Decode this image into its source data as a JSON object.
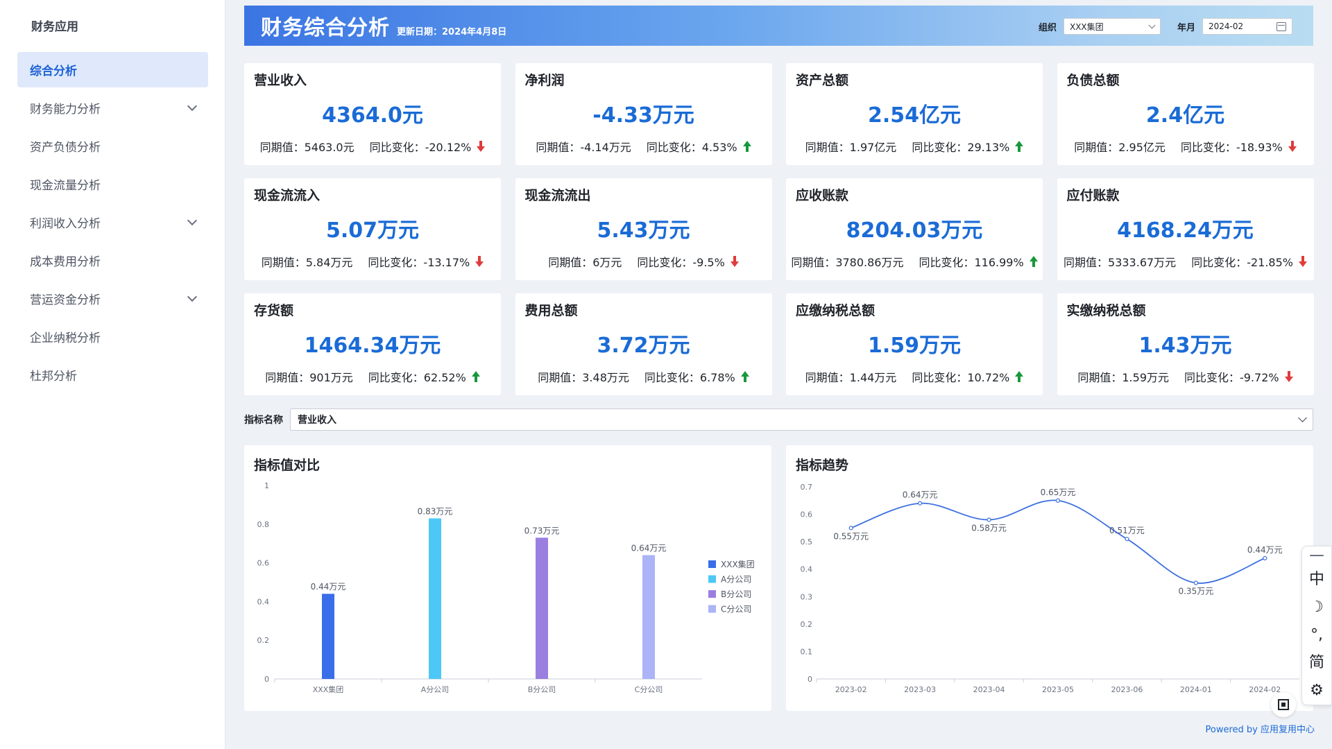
{
  "sidebar": {
    "app_title": "财务应用",
    "items": [
      {
        "label": "综合分析",
        "active": true,
        "has_children": false
      },
      {
        "label": "财务能力分析",
        "active": false,
        "has_children": true
      },
      {
        "label": "资产负债分析",
        "active": false,
        "has_children": false
      },
      {
        "label": "现金流量分析",
        "active": false,
        "has_children": false
      },
      {
        "label": "利润收入分析",
        "active": false,
        "has_children": true
      },
      {
        "label": "成本费用分析",
        "active": false,
        "has_children": false
      },
      {
        "label": "营运资金分析",
        "active": false,
        "has_children": true
      },
      {
        "label": "企业纳税分析",
        "active": false,
        "has_children": false
      },
      {
        "label": "杜邦分析",
        "active": false,
        "has_children": false
      }
    ]
  },
  "header": {
    "title": "财务综合分析",
    "update_date": "更新日期：2024年4月8日",
    "org_label": "组织",
    "org_value": "XXX集团",
    "month_label": "年月",
    "month_value": "2024-02"
  },
  "kpis": [
    {
      "name": "营业收入",
      "value": "4364.0元",
      "prev": "同期值：5463.0元",
      "change": "同比变化：-20.12%",
      "trend": "down"
    },
    {
      "name": "净利润",
      "value": "-4.33万元",
      "prev": "同期值：-4.14万元",
      "change": "同比变化：4.53%",
      "trend": "up"
    },
    {
      "name": "资产总额",
      "value": "2.54亿元",
      "prev": "同期值：1.97亿元",
      "change": "同比变化：29.13%",
      "trend": "up"
    },
    {
      "name": "负债总额",
      "value": "2.4亿元",
      "prev": "同期值：2.95亿元",
      "change": "同比变化：-18.93%",
      "trend": "down"
    },
    {
      "name": "现金流流入",
      "value": "5.07万元",
      "prev": "同期值：5.84万元",
      "change": "同比变化：-13.17%",
      "trend": "down"
    },
    {
      "name": "现金流流出",
      "value": "5.43万元",
      "prev": "同期值：6万元",
      "change": "同比变化：-9.5%",
      "trend": "down"
    },
    {
      "name": "应收账款",
      "value": "8204.03万元",
      "prev": "同期值：3780.86万元",
      "change": "同比变化：116.99%",
      "trend": "up"
    },
    {
      "name": "应付账款",
      "value": "4168.24万元",
      "prev": "同期值：5333.67万元",
      "change": "同比变化：-21.85%",
      "trend": "down"
    },
    {
      "name": "存货额",
      "value": "1464.34万元",
      "prev": "同期值：901万元",
      "change": "同比变化：62.52%",
      "trend": "up"
    },
    {
      "name": "费用总额",
      "value": "3.72万元",
      "prev": "同期值：3.48万元",
      "change": "同比变化：6.78%",
      "trend": "up"
    },
    {
      "name": "应缴纳税总额",
      "value": "1.59万元",
      "prev": "同期值：1.44万元",
      "change": "同比变化：10.72%",
      "trend": "up"
    },
    {
      "name": "实缴纳税总额",
      "value": "1.43万元",
      "prev": "同期值：1.59万元",
      "change": "同比变化：-9.72%",
      "trend": "down"
    }
  ],
  "indicator": {
    "label": "指标名称",
    "value": "营业收入"
  },
  "colors": {
    "up": "#17983d",
    "down": "#e03b3b",
    "value": "#1a6bd6",
    "line": "#3c6fe0"
  },
  "chart_data": [
    {
      "type": "bar",
      "title": "指标值对比",
      "categories": [
        "XXX集团",
        "A分公司",
        "B分公司",
        "C分公司"
      ],
      "values": [
        0.44,
        0.83,
        0.73,
        0.64
      ],
      "data_labels": [
        "0.44万元",
        "0.83万元",
        "0.73万元",
        "0.64万元"
      ],
      "colors": [
        "#3a6de8",
        "#4dc8f6",
        "#9a7fe0",
        "#aab4f6"
      ],
      "ylim": [
        0,
        1
      ],
      "yticks": [
        "0",
        "0.2",
        "0.4",
        "0.6",
        "0.8",
        "1"
      ],
      "legend": [
        "XXX集团",
        "A分公司",
        "B分公司",
        "C分公司"
      ],
      "legend_position": "right"
    },
    {
      "type": "line",
      "title": "指标趋势",
      "x": [
        "2023-02",
        "2023-03",
        "2023-04",
        "2023-05",
        "2023-06",
        "2024-01",
        "2024-02"
      ],
      "values": [
        0.55,
        0.64,
        0.58,
        0.65,
        0.51,
        0.35,
        0.44
      ],
      "data_labels": [
        "0.55万元",
        "0.64万元",
        "0.58万元",
        "0.65万元",
        "0.51万元",
        "0.35万元",
        "0.44万元"
      ],
      "ylim": [
        0,
        0.7
      ],
      "yticks": [
        "0",
        "0.1",
        "0.2",
        "0.3",
        "0.4",
        "0.5",
        "0.6",
        "0.7"
      ],
      "smooth": true
    }
  ],
  "ime": {
    "items": [
      "中",
      "☽",
      "°,",
      "简",
      "⚙"
    ]
  },
  "footer": {
    "powered": "Powered by 应用复用中心"
  }
}
